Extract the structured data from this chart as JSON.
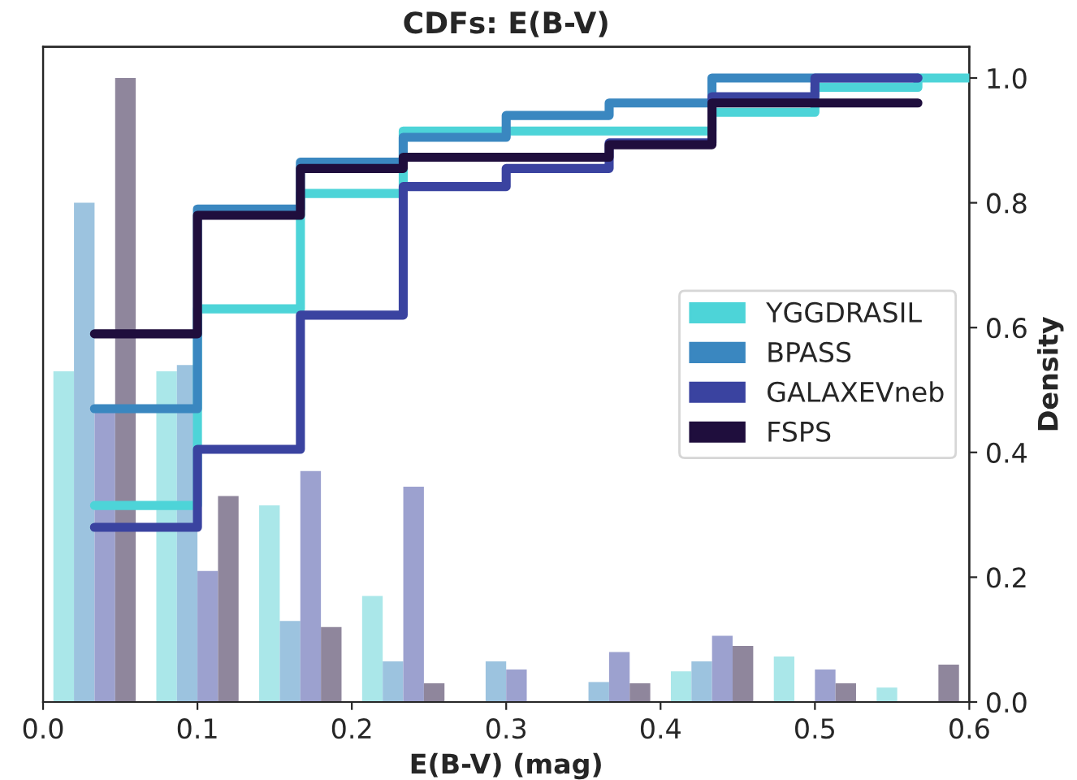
{
  "chart_data": {
    "type": "histogram",
    "title": "CDFs: E(B-V)",
    "xlabel": "E(B-V) (mag)",
    "y2label": "Density",
    "xlim": [
      0,
      0.6
    ],
    "xticks": [
      {
        "value": 0,
        "label": "0.0"
      },
      0.1,
      0.2,
      0.3,
      0.4,
      0.5,
      0.6
    ],
    "y2lim": [
      0,
      1.05
    ],
    "y2ticks": [
      {
        "value": 0,
        "label": "0.0"
      },
      0.2,
      0.4,
      0.6,
      0.8,
      {
        "value": 1,
        "label": "1.0"
      }
    ],
    "bins": [
      0,
      0.0667,
      0.1333,
      0.2,
      0.2667,
      0.3333,
      0.4,
      0.4667,
      0.5333,
      0.6
    ],
    "legend": "center right",
    "series": [
      {
        "axis": "y2",
        "color": "#aae7e9",
        "values": [
          0.53,
          0.53,
          0.315,
          0.17,
          0,
          0,
          0.049,
          0.073,
          0.023
        ]
      },
      {
        "axis": "y2",
        "color": "#9cc3df",
        "values": [
          0.8,
          0.54,
          0.13,
          0.065,
          0.065,
          0.032,
          0.065,
          0,
          0
        ]
      },
      {
        "axis": "y2",
        "color": "#9ca1cf",
        "values": [
          0.47,
          0.21,
          0.37,
          0.345,
          0.052,
          0.08,
          0.106,
          0.052,
          0
        ]
      },
      {
        "axis": "y2",
        "color": "#8f869c",
        "values": [
          1.0,
          0.33,
          0.12,
          0.03,
          0,
          0.03,
          0.09,
          0.03,
          0.06
        ]
      },
      {
        "type": "step",
        "axis": "y2",
        "name": "YGGDRASIL",
        "color": "#4dd4d8",
        "x": [
          0.0333,
          0.1,
          0.1667,
          0.2333,
          0.3,
          0.3667,
          0.4333,
          0.5,
          0.5667,
          0.6
        ],
        "values": [
          0.315,
          0.63,
          0.815,
          0.915,
          0.915,
          0.915,
          0.945,
          0.985,
          1.0,
          1.0
        ]
      },
      {
        "type": "step",
        "axis": "y2",
        "name": "BPASS",
        "color": "#3a87c0",
        "x": [
          0.0333,
          0.1,
          0.1667,
          0.2333,
          0.3,
          0.3667,
          0.4333,
          0.5,
          0.5667
        ],
        "values": [
          0.47,
          0.79,
          0.865,
          0.905,
          0.94,
          0.96,
          1.0,
          1.0,
          1.0
        ]
      },
      {
        "type": "step",
        "axis": "y2",
        "name": "GALAXEVneb",
        "color": "#3a43a0",
        "x": [
          0.0333,
          0.1,
          0.1667,
          0.2333,
          0.3,
          0.3667,
          0.4333,
          0.5,
          0.5667
        ],
        "values": [
          0.28,
          0.405,
          0.62,
          0.826,
          0.855,
          0.896,
          0.97,
          1.0,
          1.0
        ]
      },
      {
        "type": "step",
        "axis": "y2",
        "name": "FSPS",
        "color": "#1f0e3d",
        "x": [
          0.0333,
          0.1,
          0.1667,
          0.2333,
          0.3,
          0.3667,
          0.4333,
          0.5,
          0.5667
        ],
        "values": [
          0.59,
          0.78,
          0.855,
          0.873,
          0.873,
          0.893,
          0.96,
          0.96,
          0.96
        ]
      }
    ]
  }
}
